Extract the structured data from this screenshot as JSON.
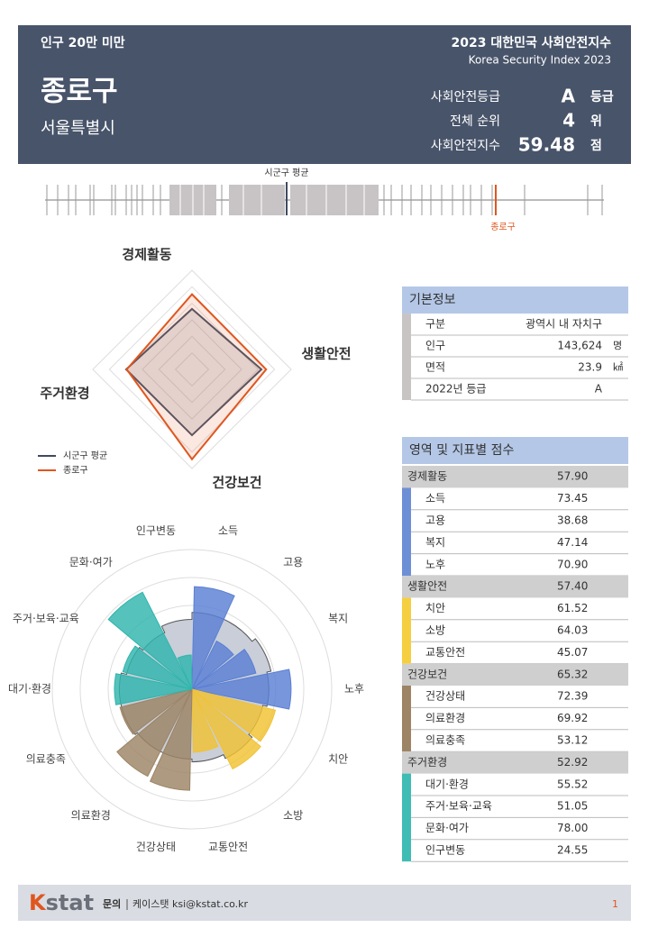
{
  "header": {
    "group": "인구 20만 미만",
    "title": "2023 대한민국 사회안전지수",
    "subtitle": "Korea Security Index 2023",
    "region": "종로구",
    "city": "서울특별시",
    "stats": [
      {
        "label": "사회안전등급",
        "value": "A",
        "unit": "등급"
      },
      {
        "label": "전체 순위",
        "value": "4",
        "unit": "위"
      },
      {
        "label": "사회안전지수",
        "value": "59.48",
        "unit": "점"
      }
    ]
  },
  "strip": {
    "average_label": "시군구 평균",
    "region_label": "종로구"
  },
  "chart_data": [
    {
      "type": "radar",
      "categories": [
        "경제활동",
        "생활안전",
        "건강보건",
        "주거환경"
      ],
      "rlim": [
        20,
        70
      ],
      "series": [
        {
          "name": "시군구 평균",
          "color": "#3f4a5f",
          "values": [
            50.5,
            55,
            53.2,
            53.2
          ]
        },
        {
          "name": "종로구",
          "color": "#e0561e",
          "values": [
            57.9,
            57.4,
            65.32,
            52.92
          ]
        }
      ]
    },
    {
      "type": "polar_bar",
      "categories": [
        "소득",
        "고용",
        "복지",
        "노후",
        "치안",
        "소방",
        "교통안전",
        "건강상태",
        "의료환경",
        "의료충족",
        "대기·환경",
        "주거·보육·교육",
        "문화·여가",
        "인구변동"
      ],
      "rlim": [
        0,
        100
      ],
      "series": [
        {
          "color": "#c9ced8",
          "values": [
            55,
            55,
            58,
            55,
            52,
            55,
            52,
            50,
            50,
            52,
            52,
            48,
            45,
            50
          ]
        },
        {
          "colors": [
            "#5a7fd4",
            "#5a7fd4",
            "#5a7fd4",
            "#5a7fd4",
            "#f1c232",
            "#f1c232",
            "#f1c232",
            "#9c8465",
            "#9c8465",
            "#9c8465",
            "#2fb5ad",
            "#2fb5ad",
            "#2fb5ad",
            "#2fb5ad"
          ],
          "values": [
            73.45,
            38.68,
            47.14,
            70.9,
            61.52,
            64.03,
            45.07,
            72.39,
            69.92,
            53.12,
            55.52,
            51.05,
            78.0,
            24.55
          ]
        }
      ]
    }
  ],
  "basic_info": {
    "title": "기본정보",
    "rows": [
      [
        "구분",
        "광역시 내 자치구"
      ],
      [
        "인구",
        "143,624",
        "명"
      ],
      [
        "면적",
        "23.9",
        "㎢"
      ],
      [
        "2022년 등급",
        "A"
      ]
    ]
  },
  "scores": {
    "title": "영역 및 지표별 점수",
    "groups": [
      {
        "name": "경제활동",
        "score": "57.90",
        "color": "#6d8fd6",
        "items": [
          [
            "소득",
            "73.45"
          ],
          [
            "고용",
            "38.68"
          ],
          [
            "복지",
            "47.14"
          ],
          [
            "노후",
            "70.90"
          ]
        ]
      },
      {
        "name": "생활안전",
        "score": "57.40",
        "color": "#f5cf3f",
        "items": [
          [
            "치안",
            "61.52"
          ],
          [
            "소방",
            "64.03"
          ],
          [
            "교통안전",
            "45.07"
          ]
        ]
      },
      {
        "name": "건강보건",
        "score": "65.32",
        "color": "#9c8465",
        "items": [
          [
            "건강상태",
            "72.39"
          ],
          [
            "의료환경",
            "69.92"
          ],
          [
            "의료충족",
            "53.12"
          ]
        ]
      },
      {
        "name": "주거환경",
        "score": "52.92",
        "color": "#3fbcb4",
        "items": [
          [
            "대기·환경",
            "55.52"
          ],
          [
            "주거·보육·교육",
            "51.05"
          ],
          [
            "문화·여가",
            "78.00"
          ],
          [
            "인구변동",
            "24.55"
          ]
        ]
      }
    ]
  },
  "footer": {
    "logo": [
      "K",
      "stat"
    ],
    "contact_label": "문의",
    "contact": "케이스탯 ksi@kstat.co.kr",
    "page": "1"
  }
}
